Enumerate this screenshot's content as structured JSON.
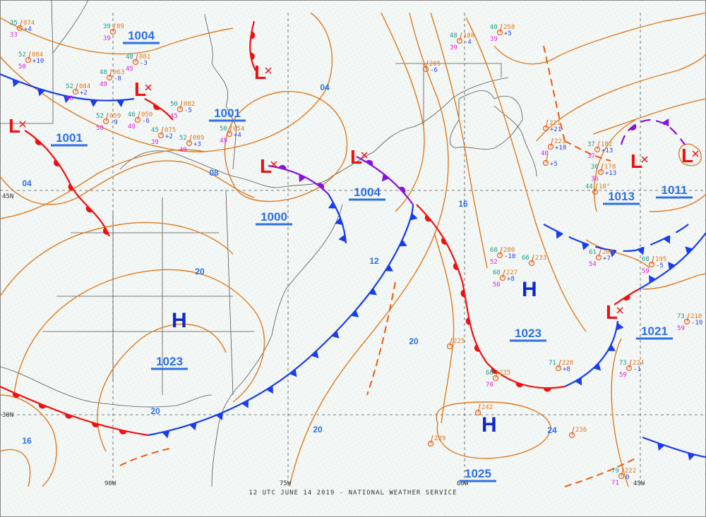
{
  "caption": "12 UTC JUNE 14 2019 - NATIONAL WEATHER SERVICE",
  "colors": {
    "background": "#f3f7f5",
    "isobar": "#e07a20",
    "cold_front": "#1a3cf0",
    "warm_front": "#f01010",
    "occluded_front": "#8a10e0",
    "pressure_label": "#2e6fe6",
    "high_symbol": "#1028d0",
    "low_symbol": "#f01010"
  },
  "grid_labels": [
    "45N",
    "30N",
    "90W",
    "75W",
    "60W",
    "45W"
  ],
  "pressure_centers": [
    {
      "type": "H",
      "value": "1023"
    },
    {
      "type": "H",
      "value": "1023"
    },
    {
      "type": "H",
      "value": "1025"
    },
    {
      "type": "L",
      "value": "1004"
    },
    {
      "type": "L",
      "value": "1001"
    },
    {
      "type": "L",
      "value": "1001"
    },
    {
      "type": "L",
      "value": "1000"
    },
    {
      "type": "L",
      "value": "1004"
    },
    {
      "type": "L",
      "value": "1013"
    },
    {
      "type": "L",
      "value": "1011"
    },
    {
      "type": "L",
      "value": "1021"
    }
  ],
  "symbols": {
    "high": "H",
    "low": "L"
  },
  "isobar_labels": [
    "04",
    "08",
    "04",
    "16",
    "12",
    "20",
    "20",
    "20",
    "16",
    "20",
    "24"
  ],
  "stations": [
    {
      "temp": "35",
      "dew": "33",
      "pres": "074",
      "tend": "+4"
    },
    {
      "temp": "52",
      "dew": "50",
      "pres": "084",
      "tend": "+10"
    },
    {
      "temp": "39",
      "dew": "39",
      "pres": "09",
      "tend": ""
    },
    {
      "temp": "48",
      "dew": "45",
      "pres": "081",
      "tend": "-3"
    },
    {
      "temp": "48",
      "dew": "49",
      "pres": "063",
      "tend": "-8"
    },
    {
      "temp": "52",
      "dew": "46",
      "pres": "084",
      "tend": "+2"
    },
    {
      "temp": "50",
      "dew": "45",
      "pres": "082",
      "tend": "-5"
    },
    {
      "temp": "52",
      "dew": "50",
      "pres": "059",
      "tend": "-9"
    },
    {
      "temp": "46",
      "dew": "49",
      "pres": "050",
      "tend": "-6"
    },
    {
      "temp": "45",
      "dew": "39",
      "pres": "075",
      "tend": "+2"
    },
    {
      "temp": "52",
      "dew": "49",
      "pres": "089",
      "tend": "+3"
    },
    {
      "temp": "50",
      "dew": "49",
      "pres": "054",
      "tend": "+4"
    },
    {
      "temp": "40",
      "dew": "39",
      "pres": "258",
      "tend": "+5"
    },
    {
      "temp": "48",
      "dew": "39",
      "pres": "188",
      "tend": "-4"
    },
    {
      "temp": "",
      "dew": "",
      "pres": "205",
      "tend": "-6"
    },
    {
      "temp": "",
      "dew": "",
      "pres": "221",
      "tend": "+21"
    },
    {
      "temp": "37",
      "dew": "37",
      "pres": "182",
      "tend": "+13"
    },
    {
      "temp": "36",
      "dew": "36",
      "pres": "178",
      "tend": "+13"
    },
    {
      "temp": "",
      "dew": "40",
      "pres": "221",
      "tend": "+18"
    },
    {
      "temp": "",
      "dew": "",
      "pres": "",
      "tend": "+5"
    },
    {
      "temp": "68",
      "dew": "52",
      "pres": "280",
      "tend": "-10"
    },
    {
      "temp": "68",
      "dew": "56",
      "pres": "227",
      "tend": "+8"
    },
    {
      "temp": "66",
      "dew": "",
      "pres": "233",
      "tend": ""
    },
    {
      "temp": "61",
      "dew": "54",
      "pres": "200",
      "tend": "+7"
    },
    {
      "temp": "68",
      "dew": "59",
      "pres": "195",
      "tend": "-5"
    },
    {
      "temp": "73",
      "dew": "59",
      "pres": "210",
      "tend": "-10"
    },
    {
      "temp": "71",
      "dew": "",
      "pres": "228",
      "tend": "+8"
    },
    {
      "temp": "",
      "dew": "",
      "pres": "225",
      "tend": ""
    },
    {
      "temp": "68",
      "dew": "70",
      "pres": "235",
      "tend": ""
    },
    {
      "temp": "73",
      "dew": "59",
      "pres": "224",
      "tend": "-1"
    },
    {
      "temp": "",
      "dew": "",
      "pres": "242",
      "tend": ""
    },
    {
      "temp": "",
      "dew": "",
      "pres": "239",
      "tend": ""
    },
    {
      "temp": "",
      "dew": "",
      "pres": "236",
      "tend": ""
    },
    {
      "temp": "79",
      "dew": "71",
      "pres": "222",
      "tend": "0"
    },
    {
      "temp": "44",
      "dew": "",
      "pres": "18°",
      "tend": ""
    }
  ]
}
